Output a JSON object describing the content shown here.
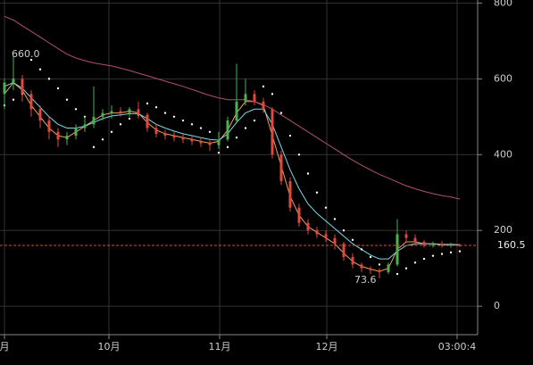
{
  "chart_data": {
    "type": "candlestick",
    "open": [
      560,
      590,
      600,
      560,
      520,
      490,
      460,
      440,
      450,
      470,
      480,
      500,
      510,
      515,
      510,
      520,
      505,
      470,
      455,
      450,
      445,
      440,
      435,
      430,
      425,
      440,
      490,
      540,
      560,
      540,
      520,
      400,
      330,
      260,
      220,
      200,
      190,
      180,
      165,
      130,
      110,
      100,
      95,
      90,
      110,
      190,
      180,
      170,
      160,
      165,
      160,
      162
    ],
    "high": [
      600,
      660,
      610,
      570,
      530,
      500,
      470,
      460,
      480,
      500,
      580,
      520,
      530,
      525,
      525,
      540,
      510,
      480,
      465,
      460,
      455,
      450,
      445,
      440,
      460,
      500,
      640,
      600,
      570,
      550,
      525,
      410,
      340,
      270,
      230,
      210,
      200,
      190,
      170,
      140,
      115,
      105,
      100,
      115,
      230,
      200,
      190,
      175,
      170,
      172,
      168,
      165
    ],
    "low": [
      520,
      570,
      540,
      500,
      470,
      440,
      420,
      425,
      440,
      460,
      470,
      490,
      495,
      500,
      500,
      495,
      460,
      445,
      440,
      435,
      430,
      425,
      420,
      410,
      415,
      435,
      485,
      530,
      530,
      510,
      390,
      320,
      250,
      210,
      190,
      180,
      170,
      150,
      120,
      100,
      90,
      85,
      73.6,
      85,
      105,
      170,
      160,
      155,
      155,
      155,
      155,
      156
    ],
    "close": [
      590,
      600,
      560,
      520,
      490,
      460,
      440,
      450,
      470,
      480,
      500,
      510,
      515,
      510,
      520,
      505,
      470,
      455,
      450,
      445,
      440,
      435,
      430,
      425,
      440,
      490,
      540,
      560,
      540,
      520,
      400,
      330,
      260,
      220,
      200,
      190,
      180,
      165,
      130,
      110,
      100,
      95,
      90,
      110,
      190,
      180,
      170,
      160,
      165,
      160,
      162,
      160.5
    ],
    "up_color": "#4caf50",
    "down_color": "#e0483c",
    "series": [
      {
        "color": "#f0a060",
        "style": "line",
        "values": [
          560,
          590,
          570,
          530,
          500,
          470,
          450,
          445,
          460,
          475,
          490,
          505,
          510,
          510,
          515,
          510,
          485,
          465,
          455,
          450,
          445,
          440,
          435,
          430,
          435,
          465,
          510,
          540,
          540,
          530,
          450,
          370,
          290,
          240,
          210,
          195,
          180,
          165,
          140,
          118,
          105,
          98,
          92,
          100,
          150,
          170,
          170,
          165,
          165,
          162,
          162,
          161
        ]
      },
      {
        "color": "#7fd8e8",
        "style": "line",
        "values": [
          580,
          590,
          575,
          550,
          525,
          500,
          480,
          470,
          470,
          475,
          485,
          495,
          502,
          505,
          508,
          508,
          495,
          480,
          470,
          462,
          455,
          450,
          445,
          440,
          438,
          455,
          485,
          510,
          520,
          520,
          480,
          420,
          360,
          310,
          270,
          245,
          225,
          205,
          185,
          165,
          150,
          135,
          125,
          125,
          145,
          160,
          165,
          165,
          165,
          163,
          163,
          162
        ]
      },
      {
        "color": "#b05070",
        "style": "line",
        "values": [
          765,
          755,
          740,
          725,
          710,
          695,
          680,
          665,
          655,
          648,
          642,
          638,
          634,
          628,
          622,
          615,
          608,
          601,
          594,
          587,
          580,
          572,
          564,
          556,
          550,
          545,
          545,
          545,
          540,
          532,
          520,
          505,
          490,
          475,
          460,
          445,
          430,
          415,
          400,
          385,
          372,
          360,
          348,
          338,
          328,
          318,
          310,
          303,
          297,
          292,
          288,
          283
        ]
      },
      {
        "color": "#ffffff",
        "style": "dots",
        "values": [
          530,
          545,
          560,
          650,
          625,
          600,
          575,
          545,
          520,
          500,
          420,
          440,
          460,
          480,
          495,
          505,
          535,
          525,
          510,
          500,
          490,
          480,
          470,
          460,
          405,
          420,
          445,
          470,
          490,
          580,
          560,
          510,
          450,
          400,
          350,
          300,
          260,
          230,
          200,
          175,
          150,
          130,
          110,
          95,
          85,
          100,
          115,
          125,
          133,
          138,
          142,
          145
        ]
      }
    ],
    "max_label": "660.0",
    "min_label": "73.6",
    "last_price": {
      "value": 160.5,
      "label": "160.5"
    },
    "ylim": [
      -75,
      808
    ],
    "yticks": [
      0,
      200,
      400,
      600,
      800
    ],
    "xlim": [
      -0.5,
      53
    ],
    "xticks": [
      {
        "value": 0,
        "label": "月"
      },
      {
        "value": 11.7,
        "label": "10月"
      },
      {
        "value": 24.1,
        "label": "11月"
      },
      {
        "value": 36.1,
        "label": "12月"
      },
      {
        "value": 50.7,
        "label": "03:00:4"
      }
    ],
    "grid": true
  }
}
